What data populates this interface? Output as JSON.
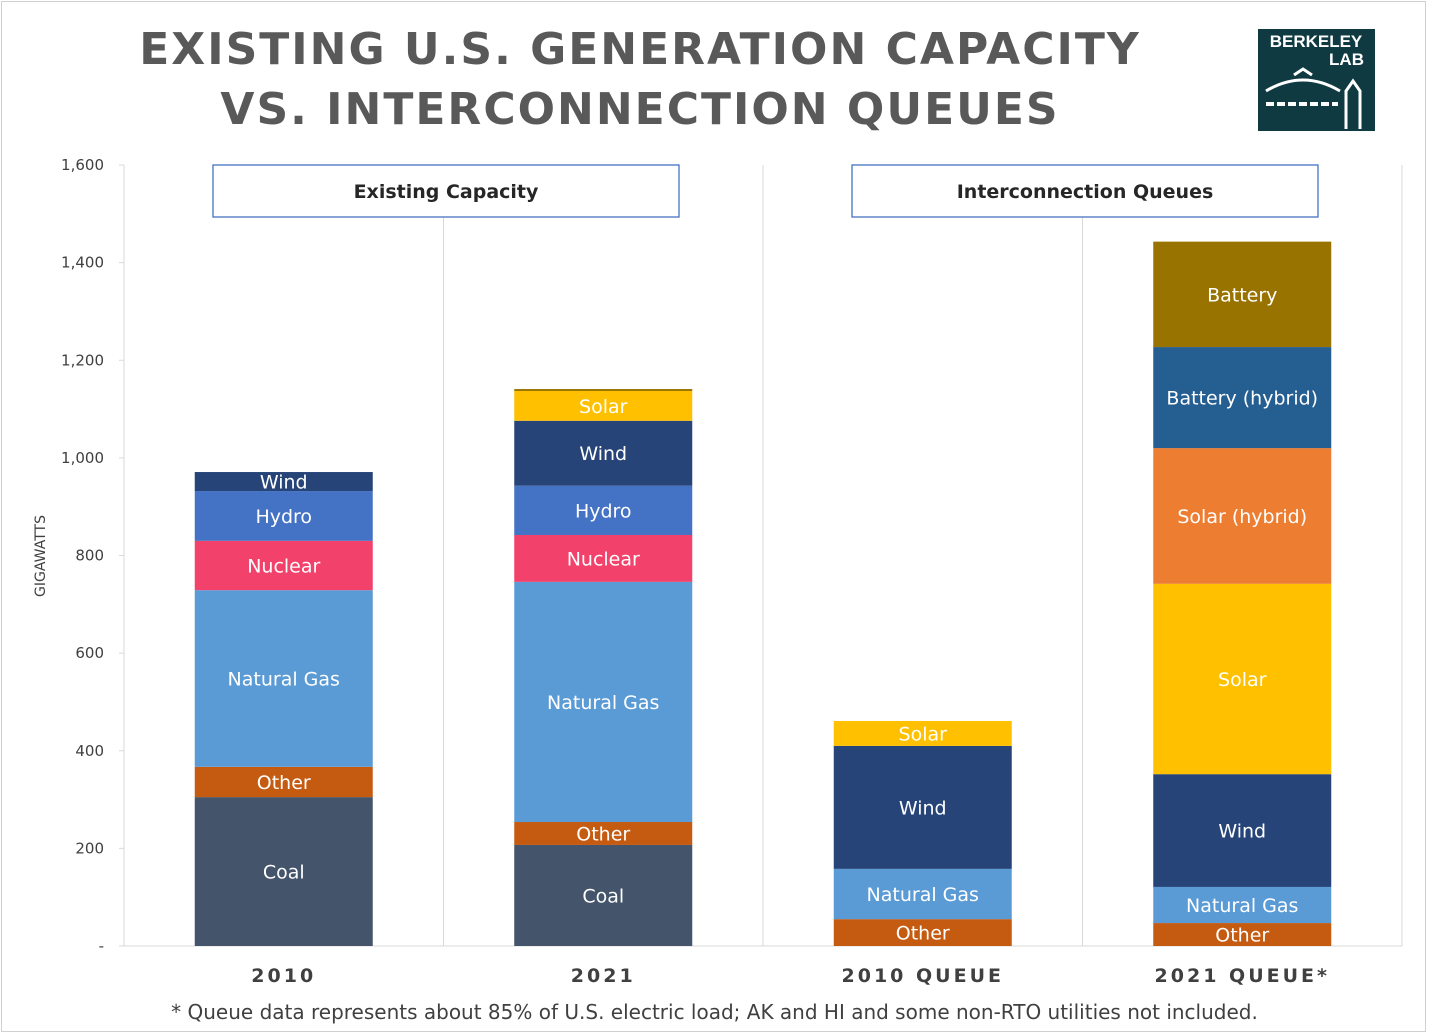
{
  "title": [
    "EXISTING U.S. GENERATION CAPACITY",
    "VS. INTERCONNECTION QUEUES"
  ],
  "logo_text": "BERKELEY LAB",
  "footnote": "* Queue data represents about 85% of U.S. electric load; AK and HI and some non-RTO utilities not included.",
  "chart_data": {
    "type": "bar",
    "stacked": true,
    "ylabel": "GIGAWATTS",
    "ylim": [
      0,
      1600
    ],
    "yticks": [
      "-",
      "200",
      "400",
      "600",
      "800",
      "1,000",
      "1,200",
      "1,400",
      "1,600"
    ],
    "categories": [
      "2010",
      "2021",
      "2010 QUEUE",
      "2021 QUEUE*"
    ],
    "group_labels": [
      {
        "label": "Existing Capacity",
        "categories": [
          "2010",
          "2021"
        ]
      },
      {
        "label": "Interconnection Queues",
        "categories": [
          "2010 QUEUE",
          "2021 QUEUE*"
        ]
      }
    ],
    "series": [
      {
        "name": "Coal",
        "color": "#44546A",
        "values": [
          305,
          207,
          0,
          0
        ]
      },
      {
        "name": "Other",
        "color": "#C55A11",
        "values": [
          62,
          47,
          55,
          47
        ]
      },
      {
        "name": "Natural Gas",
        "color": "#5B9BD5",
        "values": [
          362,
          492,
          103,
          74
        ]
      },
      {
        "name": "Nuclear",
        "color": "#F2416A",
        "values": [
          101,
          96,
          0,
          0
        ]
      },
      {
        "name": "Hydro",
        "color": "#4472C4",
        "values": [
          102,
          101,
          0,
          0
        ]
      },
      {
        "name": "Wind",
        "color": "#264478",
        "values": [
          39,
          133,
          252,
          231
        ]
      },
      {
        "name": "Solar",
        "color": "#FFC000",
        "values": [
          0,
          61,
          51,
          390
        ]
      },
      {
        "name": "Solar (hybrid)",
        "color": "#ED7D31",
        "values": [
          0,
          0,
          0,
          278
        ]
      },
      {
        "name": "Battery (hybrid)",
        "color": "#255E91",
        "values": [
          0,
          0,
          0,
          207
        ]
      },
      {
        "name": "Battery",
        "color": "#997300",
        "values": [
          0,
          4,
          0,
          216
        ]
      }
    ]
  }
}
